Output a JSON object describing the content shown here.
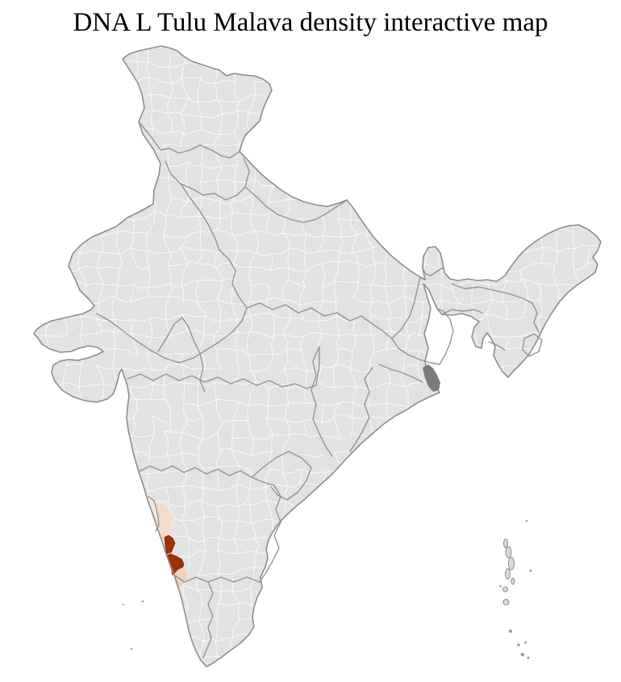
{
  "title": "DNA L Tulu Malava density interactive map",
  "map": {
    "region": "India district-level choropleth",
    "colors": {
      "background": "#ffffff",
      "district_fill": "#e2e2e2",
      "district_border": "#fbfbfb",
      "state_border": "#8d8d8d",
      "coast_outline": "#8d8d8d",
      "delta_marsh": "#7b7b7b",
      "island_fill": "#d9d9d9"
    },
    "highlights": [
      {
        "id": "pale",
        "color": "#f5e9e3",
        "density": "lowest shade shown"
      },
      {
        "id": "light",
        "color": "#f2dccb",
        "density": "light shade"
      },
      {
        "id": "dark",
        "color": "#9a3403",
        "density": "darkest shade shown"
      },
      {
        "id": "medium",
        "color": "#efd3ba",
        "density": "light-medium shade"
      }
    ]
  }
}
